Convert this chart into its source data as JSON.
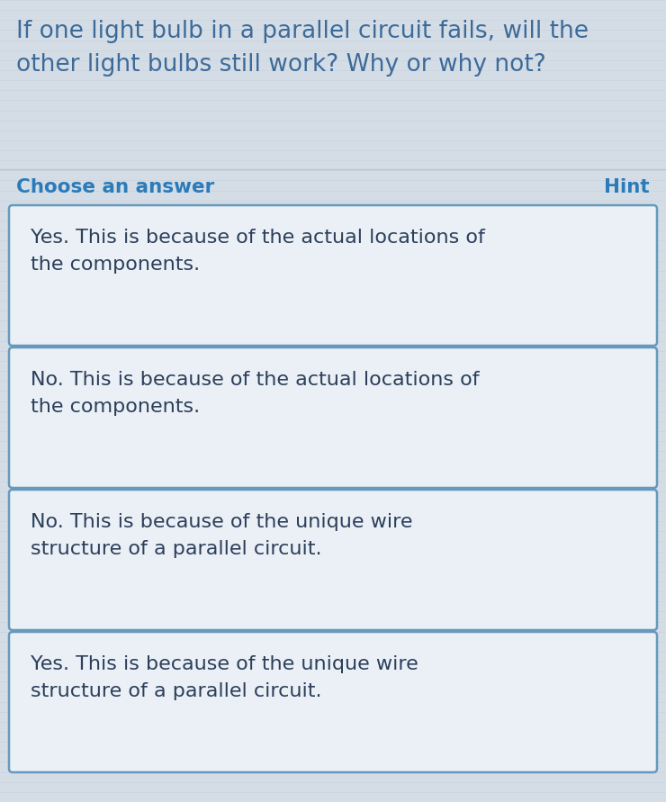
{
  "question": "If one light bulb in a parallel circuit fails, will the\nother light bulbs still work? Why or why not?",
  "question_color": "#3d6b99",
  "choose_label": "Choose an answer",
  "choose_color": "#2b7bb9",
  "hint_label": "Hint",
  "hint_color": "#2b7bb9",
  "background_color": "#d4dde6",
  "stripe_color": "#c8d2dc",
  "box_bg_color": "#eaf0f6",
  "box_border_color": "#6699bb",
  "box_text_color": "#2c3e5a",
  "answers": [
    "Yes. This is because of the actual locations of\nthe components.",
    "No. This is because of the actual locations of\nthe components.",
    "No. This is because of the unique wire\nstructure of a parallel circuit.",
    "Yes. This is because of the unique wire\nstructure of a parallel circuit."
  ],
  "figsize": [
    7.4,
    8.91
  ],
  "dpi": 100,
  "question_fontsize": 19,
  "label_fontsize": 15.5,
  "answer_fontsize": 16
}
